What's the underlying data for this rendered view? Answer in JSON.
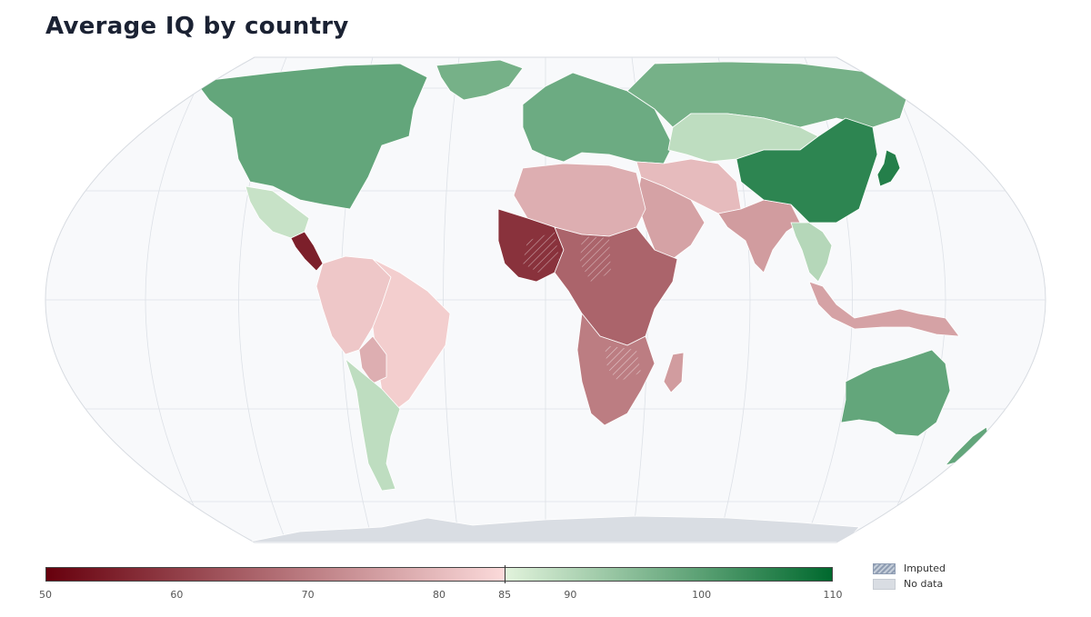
{
  "title": "Average IQ by country",
  "colors": {
    "low": "#67000d",
    "mid_low": "#fbdada",
    "mid_high": "#e2f3dc",
    "high": "#00692e",
    "ocean": "#f8f9fb",
    "no_data": "#d9dde3",
    "graticule": "#dde1e7"
  },
  "colorbar": {
    "min": 50,
    "max": 110,
    "midpoint": 85,
    "ticks": [
      {
        "value": 50,
        "label": "50"
      },
      {
        "value": 60,
        "label": "60"
      },
      {
        "value": 70,
        "label": "70"
      },
      {
        "value": 80,
        "label": "80"
      },
      {
        "value": 85,
        "label": "85"
      },
      {
        "value": 90,
        "label": "90"
      },
      {
        "value": 100,
        "label": "100"
      },
      {
        "value": 110,
        "label": "110"
      }
    ]
  },
  "legend": {
    "imputed_label": "Imputed",
    "no_data_label": "No data"
  },
  "regions": [
    {
      "name": "north-america",
      "value": 99
    },
    {
      "name": "greenland",
      "value": 97
    },
    {
      "name": "mexico-central-america",
      "value": 88
    },
    {
      "name": "central-america-south",
      "value": 55
    },
    {
      "name": "south-america-north",
      "value": 82
    },
    {
      "name": "brazil",
      "value": 83
    },
    {
      "name": "bolivia",
      "value": 78
    },
    {
      "name": "southern-cone",
      "value": 89
    },
    {
      "name": "europe",
      "value": 98
    },
    {
      "name": "russia",
      "value": 97
    },
    {
      "name": "kazakhstan-central-asia",
      "value": 89
    },
    {
      "name": "middle-east",
      "value": 80
    },
    {
      "name": "arabia",
      "value": 76
    },
    {
      "name": "north-africa",
      "value": 78
    },
    {
      "name": "west-africa",
      "value": 58
    },
    {
      "name": "central-east-africa",
      "value": 66
    },
    {
      "name": "southern-africa",
      "value": 70
    },
    {
      "name": "madagascar",
      "value": 75
    },
    {
      "name": "south-asia",
      "value": 75
    },
    {
      "name": "china-east-asia",
      "value": 105
    },
    {
      "name": "japan",
      "value": 106
    },
    {
      "name": "southeast-asia",
      "value": 90
    },
    {
      "name": "indonesia-maritime",
      "value": 76
    },
    {
      "name": "australia",
      "value": 99
    },
    {
      "name": "new-zealand",
      "value": 99
    }
  ]
}
